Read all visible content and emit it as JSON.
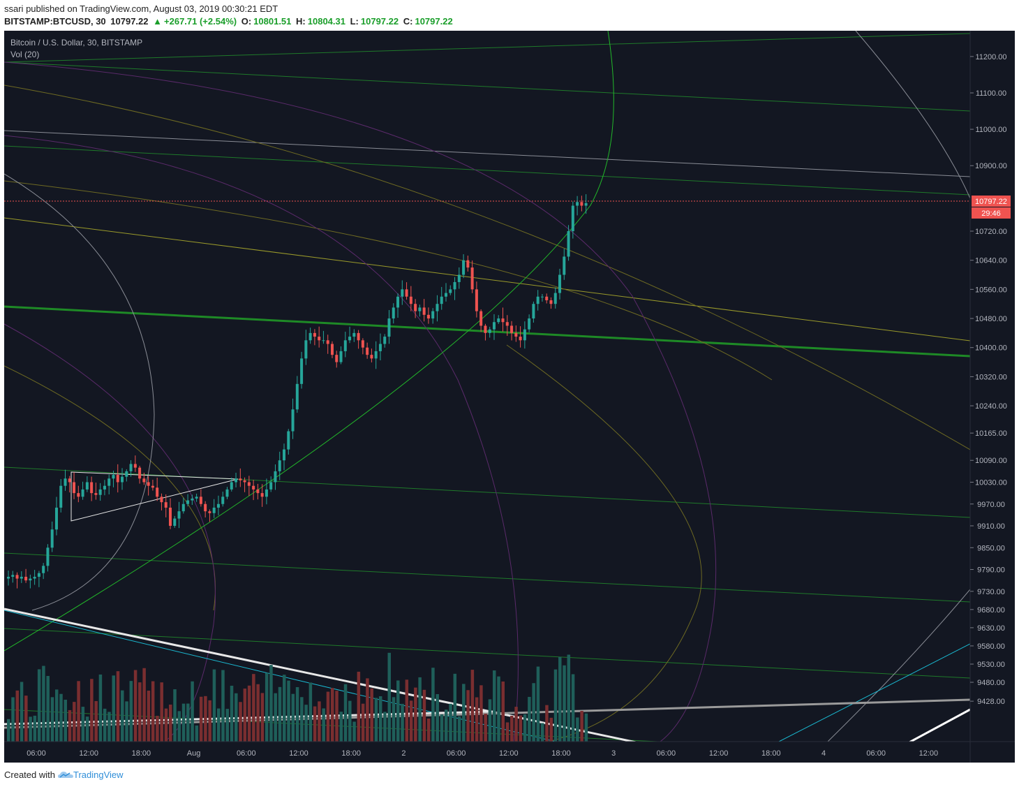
{
  "header": {
    "publisher": "ssari",
    "published_text": "published on TradingView.com, August 03, 2019 00:30:21 EDT",
    "symbol": "BITSTAMP:BTCUSD, 30",
    "last": "10797.22",
    "change": "+267.71 (+2.54%)",
    "o_label": "O:",
    "o_val": "10801.51",
    "h_label": "H:",
    "h_val": "10804.31",
    "l_label": "L:",
    "l_val": "10797.22",
    "c_label": "C:",
    "c_val": "10797.22"
  },
  "legend": {
    "title": "Bitcoin / U.S. Dollar, 30, BITSTAMP",
    "volume": "Vol (20)"
  },
  "footer": {
    "created": "Created with",
    "brand": "TradingView"
  },
  "price_tag": {
    "value": "10797.22",
    "countdown": "29:46"
  },
  "colors": {
    "background": "#131722",
    "up": "#26a69a",
    "down": "#ef5350",
    "tag": "#ef5350"
  },
  "chart_data": {
    "type": "candlestick",
    "title": "Bitcoin / U.S. Dollar, 30, BITSTAMP",
    "y_ticks": [
      "11200.00",
      "11100.00",
      "11000.00",
      "10900.00",
      "10720.00",
      "10640.00",
      "10560.00",
      "10480.00",
      "10400.00",
      "10320.00",
      "10240.00",
      "10165.00",
      "10090.00",
      "10030.00",
      "9970.00",
      "9910.00",
      "9850.00",
      "9790.00",
      "9730.00",
      "9680.00",
      "9630.00",
      "9580.00",
      "9530.00",
      "9480.00",
      "9428.00"
    ],
    "x_ticks": [
      "06:00",
      "12:00",
      "18:00",
      "Aug",
      "06:00",
      "12:00",
      "18:00",
      "2",
      "06:00",
      "12:00",
      "18:00",
      "3",
      "06:00",
      "12:00",
      "18:00",
      "4",
      "06:00",
      "12:00"
    ],
    "last_price": 10797.22,
    "candles_close": [
      9770,
      9775,
      9765,
      9770,
      9760,
      9765,
      9770,
      9780,
      9800,
      9850,
      9900,
      9960,
      10020,
      10040,
      10030,
      10000,
      9990,
      10010,
      10030,
      10000,
      9995,
      10010,
      10020,
      10040,
      10050,
      10030,
      10045,
      10060,
      10080,
      10070,
      10040,
      10030,
      10020,
      10015,
      9990,
      9975,
      9960,
      9910,
      9930,
      9950,
      9970,
      9980,
      9985,
      9990,
      9970,
      9950,
      9945,
      9960,
      9970,
      9990,
      10010,
      10030,
      10040,
      10035,
      10030,
      10020,
      10010,
      10000,
      9990,
      10010,
      10030,
      10060,
      10090,
      10120,
      10170,
      10230,
      10300,
      10370,
      10420,
      10440,
      10430,
      10420,
      10420,
      10410,
      10380,
      10360,
      10390,
      10420,
      10430,
      10440,
      10420,
      10400,
      10380,
      10370,
      10390,
      10410,
      10430,
      10480,
      10510,
      10540,
      10560,
      10540,
      10520,
      10500,
      10510,
      10490,
      10480,
      10500,
      10520,
      10540,
      10550,
      10560,
      10580,
      10600,
      10640,
      10620,
      10560,
      10500,
      10460,
      10440,
      10450,
      10470,
      10480,
      10470,
      10460,
      10440,
      10430,
      10420,
      10450,
      10480,
      10520,
      10540,
      10540,
      10530,
      10520,
      10550,
      10600,
      10650,
      10720,
      10790,
      10800,
      10790,
      10797
    ],
    "volume_note": "Vol (20)"
  }
}
